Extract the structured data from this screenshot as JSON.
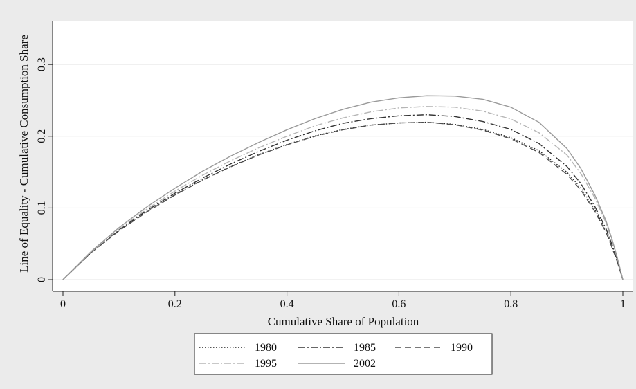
{
  "chart_data": {
    "type": "line",
    "title": "",
    "xlabel": "Cumulative Share of Population",
    "ylabel": "Line of Equality - Cumulative Consumption Share",
    "xlim": [
      0,
      1
    ],
    "ylim": [
      0,
      0.36
    ],
    "xticks": [
      0,
      0.2,
      0.4,
      0.6,
      0.8,
      1
    ],
    "xtick_labels": [
      "0",
      "0.2",
      "0.4",
      "0.6",
      "0.8",
      "1"
    ],
    "yticks": [
      0,
      0.1,
      0.2,
      0.3
    ],
    "ytick_labels": [
      "0",
      "0.1",
      "0.2",
      "0.3"
    ],
    "grid": "horizontal",
    "legend_position": "bottom",
    "x": [
      0,
      0.05,
      0.1,
      0.15,
      0.2,
      0.25,
      0.3,
      0.35,
      0.4,
      0.45,
      0.5,
      0.55,
      0.6,
      0.65,
      0.7,
      0.75,
      0.8,
      0.85,
      0.9,
      0.925,
      0.95,
      0.97,
      0.98,
      0.99,
      1.0
    ],
    "series": [
      {
        "name": "1980",
        "style": "dotted",
        "color": "#222222",
        "values": [
          0,
          0.0375,
          0.0685,
          0.095,
          0.1185,
          0.1395,
          0.158,
          0.1745,
          0.1885,
          0.2005,
          0.2095,
          0.2155,
          0.2185,
          0.2195,
          0.2165,
          0.2095,
          0.198,
          0.18,
          0.15,
          0.128,
          0.098,
          0.068,
          0.048,
          0.026,
          0
        ]
      },
      {
        "name": "1985",
        "style": "dashdot",
        "color": "#333333",
        "values": [
          0,
          0.038,
          0.0695,
          0.0965,
          0.1205,
          0.142,
          0.1615,
          0.179,
          0.1945,
          0.2075,
          0.218,
          0.2245,
          0.2285,
          0.23,
          0.2275,
          0.2205,
          0.2095,
          0.19,
          0.158,
          0.134,
          0.102,
          0.071,
          0.05,
          0.027,
          0
        ]
      },
      {
        "name": "1990",
        "style": "dashed",
        "color": "#4d4d4d",
        "values": [
          0,
          0.0375,
          0.068,
          0.0945,
          0.118,
          0.139,
          0.1575,
          0.174,
          0.188,
          0.2,
          0.209,
          0.2155,
          0.2185,
          0.2195,
          0.216,
          0.2085,
          0.1965,
          0.1775,
          0.147,
          0.125,
          0.095,
          0.066,
          0.046,
          0.025,
          0
        ]
      },
      {
        "name": "1995",
        "style": "dashdot",
        "color": "#b5b5b5",
        "values": [
          0,
          0.0385,
          0.0705,
          0.0985,
          0.1235,
          0.146,
          0.166,
          0.184,
          0.2,
          0.2145,
          0.2255,
          0.234,
          0.2395,
          0.2415,
          0.2405,
          0.235,
          0.224,
          0.205,
          0.174,
          0.148,
          0.114,
          0.079,
          0.055,
          0.03,
          0
        ]
      },
      {
        "name": "2002",
        "style": "solid",
        "color": "#9a9a9a",
        "values": [
          0,
          0.039,
          0.0725,
          0.1015,
          0.1275,
          0.1515,
          0.1725,
          0.1915,
          0.209,
          0.2245,
          0.2375,
          0.2475,
          0.2535,
          0.2565,
          0.256,
          0.2515,
          0.2405,
          0.2195,
          0.183,
          0.155,
          0.118,
          0.082,
          0.058,
          0.031,
          0
        ]
      }
    ]
  }
}
